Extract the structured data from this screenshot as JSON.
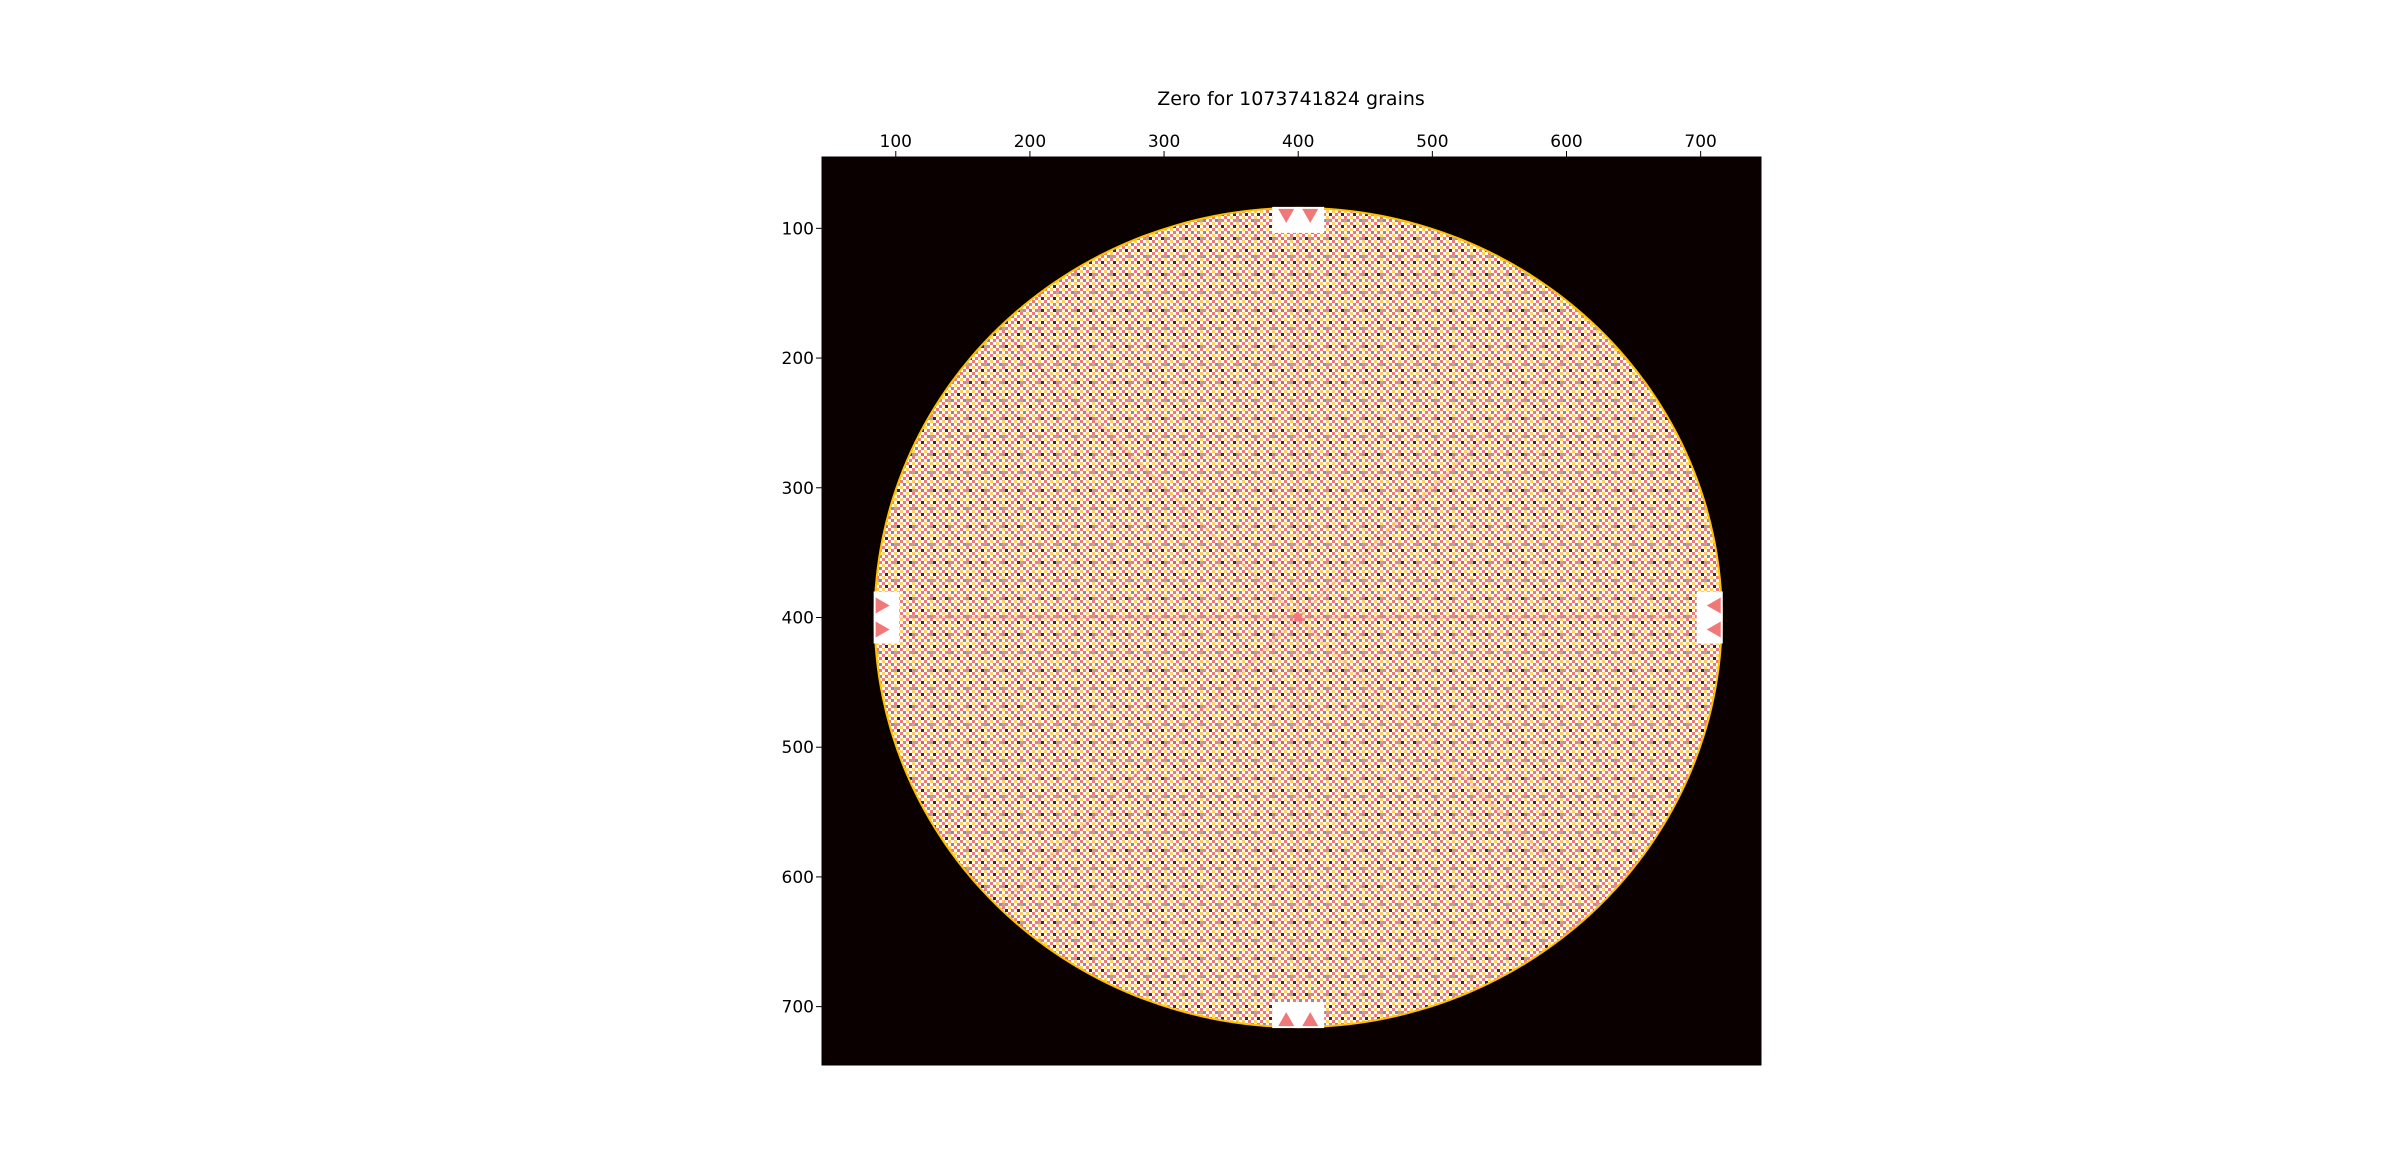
{
  "chart_data": {
    "type": "heatmap",
    "title": "Zero for 1073741824 grains",
    "xlabel": "",
    "ylabel": "",
    "x_axis_position": "top",
    "xlim": [
      45,
      745
    ],
    "ylim": [
      745,
      45
    ],
    "x_ticks": [
      100,
      200,
      300,
      400,
      500,
      600,
      700
    ],
    "y_ticks": [
      100,
      200,
      300,
      400,
      500,
      600,
      700
    ],
    "grid": false,
    "legend": "none",
    "description_values": {
      "center": [
        400,
        400
      ],
      "radius": 315
    },
    "colormap": {
      "background": "#0b0000",
      "levels": [
        "#0b0000",
        "#8a8a9a",
        "#f07878",
        "#ffd060",
        "#ffffff"
      ],
      "edge_band": "#ffc000"
    }
  }
}
